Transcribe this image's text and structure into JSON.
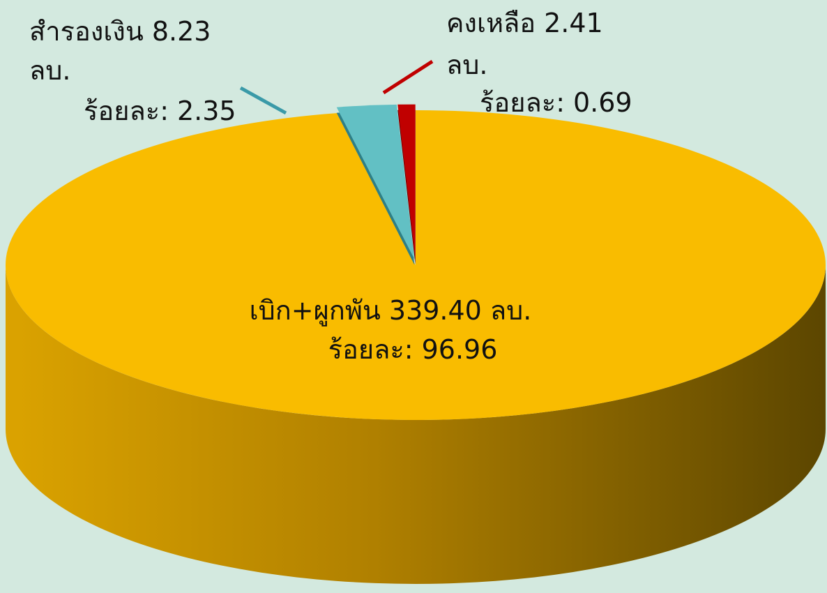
{
  "chart_data": {
    "type": "pie3d",
    "categories": [
      "เบิก+ผูกพัน",
      "สำรองเงิน",
      "คงเหลือ"
    ],
    "values": [
      339.4,
      8.23,
      2.41
    ],
    "value_labels": [
      "339.40",
      "8.23",
      "2.41"
    ],
    "unit": "ลบ.",
    "percent_label": "ร้อยละ:",
    "percents": [
      96.96,
      2.35,
      0.69
    ],
    "colors": [
      "#f9bc00",
      "#62c0c4",
      "#c00000"
    ]
  }
}
